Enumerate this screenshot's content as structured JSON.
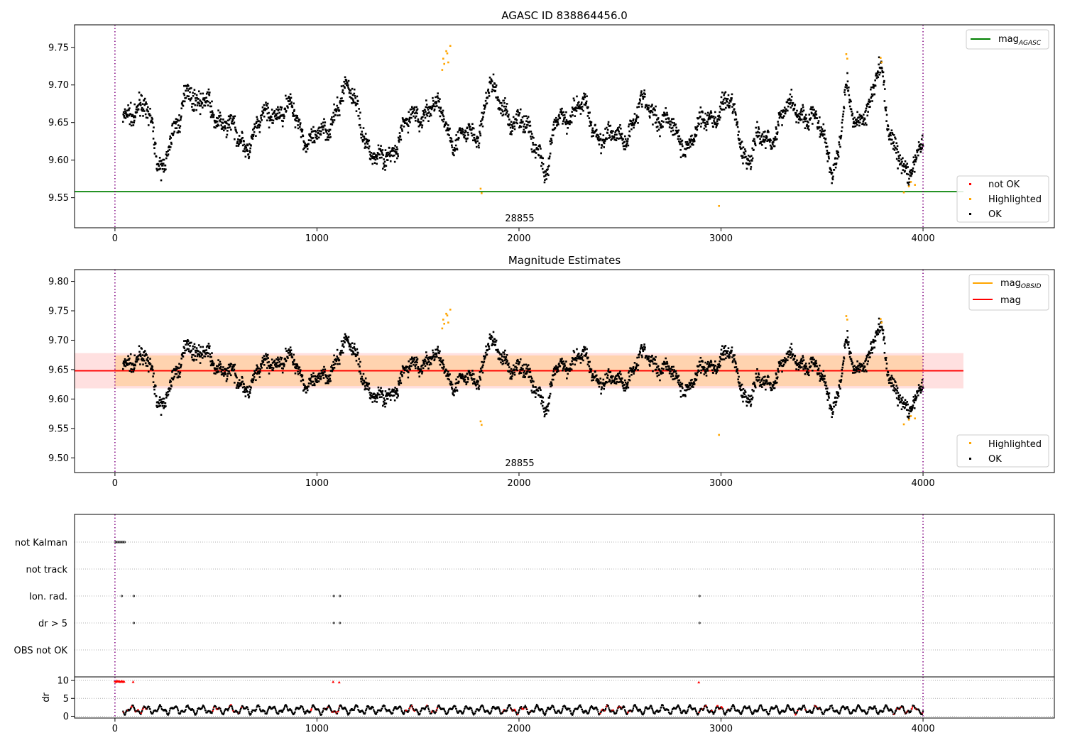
{
  "chart_data": [
    {
      "type": "scatter",
      "title": "AGASC ID 838864456.0",
      "xlim": [
        -200,
        4650
      ],
      "ylim": [
        9.51,
        9.78
      ],
      "x_ticks": [
        "0",
        "1000",
        "2000",
        "3000",
        "4000"
      ],
      "x_tick_values": [
        0,
        1000,
        2000,
        3000,
        4000
      ],
      "y_ticks": [
        "9.55",
        "9.60",
        "9.65",
        "9.70",
        "9.75"
      ],
      "y_tick_values": [
        9.55,
        9.6,
        9.65,
        9.7,
        9.75
      ],
      "obsid_label": "28855",
      "obsid_label_x": 2000,
      "obsid_bounds": [
        0,
        4000
      ],
      "agasc_mag": 9.558,
      "agasc_color": "#008000",
      "line_legend": {
        "label": "mag",
        "sub": "AGASC",
        "color": "#008000"
      },
      "point_legend": [
        {
          "label": "not OK",
          "color": "#ff0000"
        },
        {
          "label": "Highlighted",
          "color": "#ffa500"
        },
        {
          "label": "OK",
          "color": "#000000"
        }
      ],
      "highlighted_points": [
        [
          1620,
          9.72
        ],
        [
          1625,
          9.735
        ],
        [
          1630,
          9.728
        ],
        [
          1640,
          9.745
        ],
        [
          1645,
          9.742
        ],
        [
          1650,
          9.73
        ],
        [
          1660,
          9.752
        ],
        [
          1810,
          9.562
        ],
        [
          1815,
          9.556
        ],
        [
          2990,
          9.539
        ],
        [
          3620,
          9.741
        ],
        [
          3625,
          9.735
        ],
        [
          3790,
          9.736
        ],
        [
          3795,
          9.73
        ],
        [
          3905,
          9.557
        ],
        [
          3930,
          9.565
        ],
        [
          3940,
          9.571
        ],
        [
          3960,
          9.567
        ]
      ]
    },
    {
      "type": "scatter",
      "title": "Magnitude Estimates",
      "xlim": [
        -200,
        4650
      ],
      "ylim": [
        9.475,
        9.82
      ],
      "x_ticks": [
        "0",
        "1000",
        "2000",
        "3000",
        "4000"
      ],
      "x_tick_values": [
        0,
        1000,
        2000,
        3000,
        4000
      ],
      "y_ticks": [
        "9.50",
        "9.55",
        "9.60",
        "9.65",
        "9.70",
        "9.75",
        "9.80"
      ],
      "y_tick_values": [
        9.5,
        9.55,
        9.6,
        9.65,
        9.7,
        9.75,
        9.8
      ],
      "obsid_label": "28855",
      "obsid_label_x": 2000,
      "obsid_bounds": [
        0,
        4000
      ],
      "mag": 9.648,
      "mag_band": [
        9.618,
        9.678
      ],
      "obsid_band": [
        9.622,
        9.674
      ],
      "line_legend": [
        {
          "label": "mag",
          "sub": "OBSID",
          "color": "#ffa500"
        },
        {
          "label": "mag",
          "sub": "",
          "color": "#ff0000"
        }
      ],
      "point_legend": [
        {
          "label": "Highlighted",
          "color": "#ffa500"
        },
        {
          "label": "OK",
          "color": "#000000"
        }
      ]
    },
    {
      "type": "scatter",
      "title": "",
      "xlim": [
        -200,
        4650
      ],
      "flag_labels": [
        "not Kalman",
        "not track",
        "Ion. rad.",
        "dr > 5",
        "OBS not OK"
      ],
      "flags": {
        "not Kalman": [
          0,
          5,
          10,
          15,
          20,
          25,
          30,
          35,
          40,
          45
        ],
        "not track": [],
        "Ion. rad.": [
          30,
          90,
          1080,
          1110,
          2890
        ],
        "dr > 5": [
          90,
          1080,
          1110,
          2890
        ],
        "OBS not OK": []
      }
    },
    {
      "type": "scatter",
      "title": "",
      "xlim": [
        -200,
        4650
      ],
      "ylim": [
        -0.5,
        11
      ],
      "ylabel": "dr",
      "x_ticks": [
        "0",
        "1000",
        "2000",
        "3000",
        "4000"
      ],
      "x_tick_values": [
        0,
        1000,
        2000,
        3000,
        4000
      ],
      "y_ticks": [
        "0",
        "5",
        "10"
      ],
      "y_tick_values": [
        0,
        5,
        10
      ],
      "high_dr_points": [
        [
          0,
          9.8
        ],
        [
          5,
          9.6
        ],
        [
          10,
          9.9
        ],
        [
          15,
          9.7
        ],
        [
          20,
          9.8
        ],
        [
          25,
          9.6
        ],
        [
          30,
          9.7
        ],
        [
          35,
          9.8
        ],
        [
          40,
          9.6
        ],
        [
          45,
          9.7
        ],
        [
          90,
          9.6
        ],
        [
          1080,
          9.6
        ],
        [
          1110,
          9.5
        ],
        [
          2890,
          9.5
        ]
      ]
    }
  ]
}
